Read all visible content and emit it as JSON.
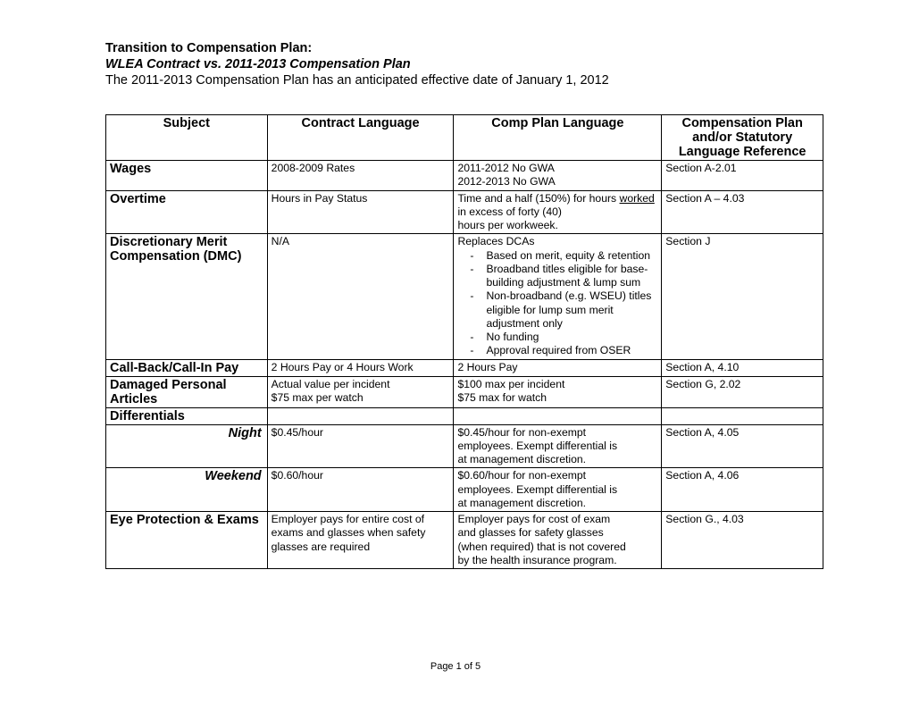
{
  "header": {
    "title": "Transition to Compensation Plan:",
    "subtitle": "WLEA Contract vs. 2011-2013 Compensation Plan",
    "intro": "The 2011-2013 Compensation Plan has an anticipated effective date of January 1, 2012"
  },
  "columns": {
    "c1": "Subject",
    "c2": "Contract Language",
    "c3": "Comp Plan Language",
    "c4_line1": "Compensation Plan",
    "c4_line2": "and/or Statutory",
    "c4_line3": "Language Reference"
  },
  "rows": {
    "wages": {
      "subject": "Wages",
      "contract": "2008-2009 Rates",
      "comp_l1": "2011-2012 No GWA",
      "comp_l2": "2012-2013 No GWA",
      "ref": "Section A-2.01"
    },
    "overtime": {
      "subject": "Overtime",
      "contract": "Hours in Pay Status",
      "comp_pre": "Time and a half (150%) for hours ",
      "comp_u": "worked",
      "comp_post1": " in excess of forty (40)",
      "comp_post2": "hours per workweek.",
      "ref": "Section A – 4.03"
    },
    "dmc": {
      "subject_l1": "Discretionary Merit",
      "subject_l2": "Compensation (DMC)",
      "contract": "N/A",
      "comp_head": "Replaces DCAs",
      "bullets": [
        "Based on merit, equity & retention",
        "Broadband titles eligible for base-building adjustment & lump sum",
        "Non-broadband (e.g. WSEU) titles eligible for lump sum merit adjustment only",
        "No funding",
        "Approval required from OSER"
      ],
      "ref": "Section J"
    },
    "callback": {
      "subject": "Call-Back/Call-In Pay",
      "contract": "2 Hours Pay or 4 Hours Work",
      "comp": "2 Hours Pay",
      "ref": "Section A, 4.10"
    },
    "damaged": {
      "subject_l1": "Damaged Personal",
      "subject_l2": "Articles",
      "contract_l1": "Actual value per incident",
      "contract_l2": "$75 max per watch",
      "comp_l1": "$100 max per incident",
      "comp_l2": "$75 max for watch",
      "ref": "Section G, 2.02"
    },
    "diff": {
      "subject": "Differentials"
    },
    "night": {
      "subject": "Night",
      "contract": "$0.45/hour",
      "comp_l1": "$0.45/hour for non-exempt",
      "comp_l2": "employees. Exempt differential is",
      "comp_l3": "at management discretion.",
      "ref": "Section A, 4.05"
    },
    "weekend": {
      "subject": "Weekend",
      "contract": "$0.60/hour",
      "comp_l1": "$0.60/hour for non-exempt",
      "comp_l2": "employees. Exempt differential is",
      "comp_l3": "at management discretion.",
      "ref": "Section A, 4.06"
    },
    "eye": {
      "subject": "Eye Protection & Exams",
      "contract_l1": "Employer pays for entire cost of",
      "contract_l2": "exams and glasses when safety",
      "contract_l3": "glasses are required",
      "comp_l1": "Employer pays for cost of exam",
      "comp_l2": "and glasses for safety glasses",
      "comp_l3": "(when required) that is not covered",
      "comp_l4": "by the health insurance program.",
      "ref": "Section G., 4.03"
    }
  },
  "footer": "Page 1 of 5"
}
